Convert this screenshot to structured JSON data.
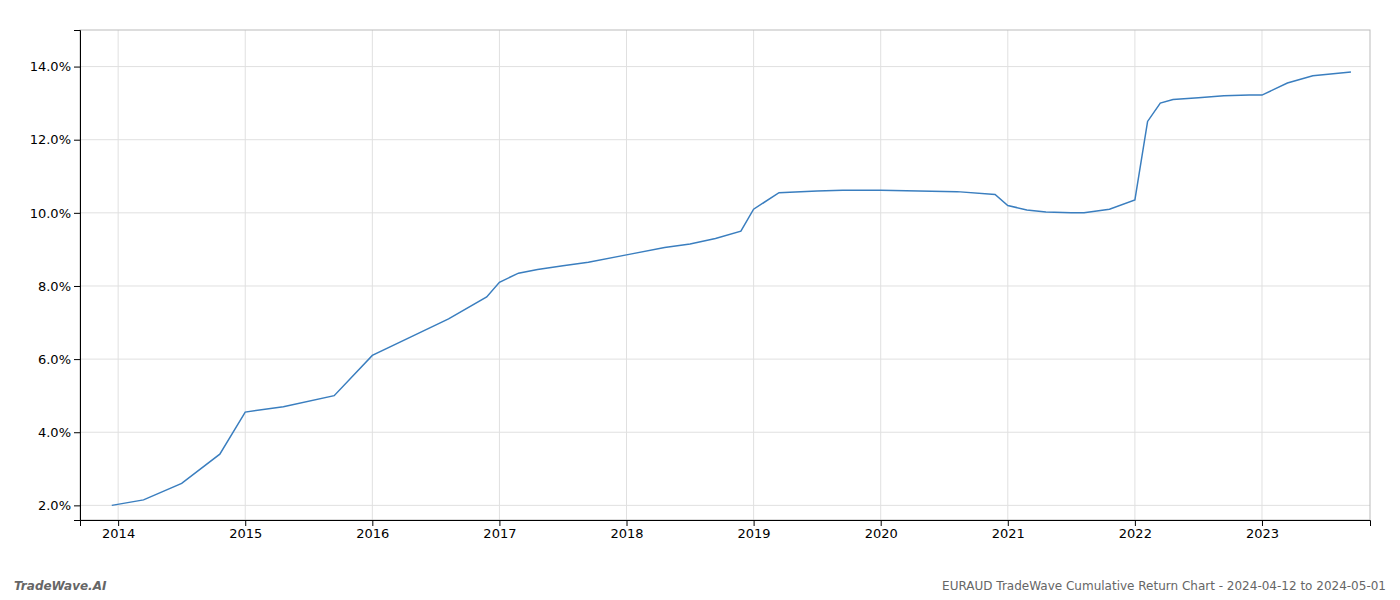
{
  "chart_data": {
    "type": "line",
    "x": [
      2013.95,
      2014.2,
      2014.5,
      2014.8,
      2015.0,
      2015.3,
      2015.7,
      2016.0,
      2016.3,
      2016.6,
      2016.9,
      2017.0,
      2017.15,
      2017.3,
      2017.5,
      2017.7,
      2018.0,
      2018.3,
      2018.5,
      2018.7,
      2018.9,
      2019.0,
      2019.2,
      2019.5,
      2019.7,
      2019.9,
      2020.0,
      2020.3,
      2020.6,
      2020.9,
      2021.0,
      2021.15,
      2021.3,
      2021.5,
      2021.6,
      2021.7,
      2021.8,
      2022.0,
      2022.1,
      2022.2,
      2022.3,
      2022.5,
      2022.7,
      2022.9,
      2023.0,
      2023.2,
      2023.4,
      2023.6,
      2023.7
    ],
    "values": [
      2.0,
      2.15,
      2.6,
      3.4,
      4.55,
      4.7,
      5.0,
      6.1,
      6.6,
      7.1,
      7.7,
      8.1,
      8.35,
      8.45,
      8.55,
      8.65,
      8.85,
      9.05,
      9.15,
      9.3,
      9.5,
      10.1,
      10.55,
      10.6,
      10.62,
      10.62,
      10.62,
      10.6,
      10.58,
      10.5,
      10.2,
      10.08,
      10.02,
      10.0,
      10.0,
      10.05,
      10.1,
      10.35,
      12.5,
      13.0,
      13.1,
      13.15,
      13.2,
      13.22,
      13.22,
      13.55,
      13.75,
      13.82,
      13.85
    ],
    "color": "#3a7ebf",
    "xlim": [
      2013.7,
      2023.85
    ],
    "ylim": [
      1.6,
      15.0
    ],
    "xticks": [
      2014,
      2015,
      2016,
      2017,
      2018,
      2019,
      2020,
      2021,
      2022,
      2023
    ],
    "yticks": [
      {
        "value": 2.0,
        "label": "2.0%"
      },
      {
        "value": 4.0,
        "label": "4.0%"
      },
      {
        "value": 6.0,
        "label": "6.0%"
      },
      {
        "value": 8.0,
        "label": "8.0%"
      },
      {
        "value": 10.0,
        "label": "10.0%"
      },
      {
        "value": 12.0,
        "label": "12.0%"
      },
      {
        "value": 14.0,
        "label": "14.0%"
      }
    ],
    "grid": true,
    "annotations": [
      "TradeWave.AI",
      "EURAUD TradeWave Cumulative Return Chart - 2024-04-12 to 2024-05-01"
    ]
  }
}
